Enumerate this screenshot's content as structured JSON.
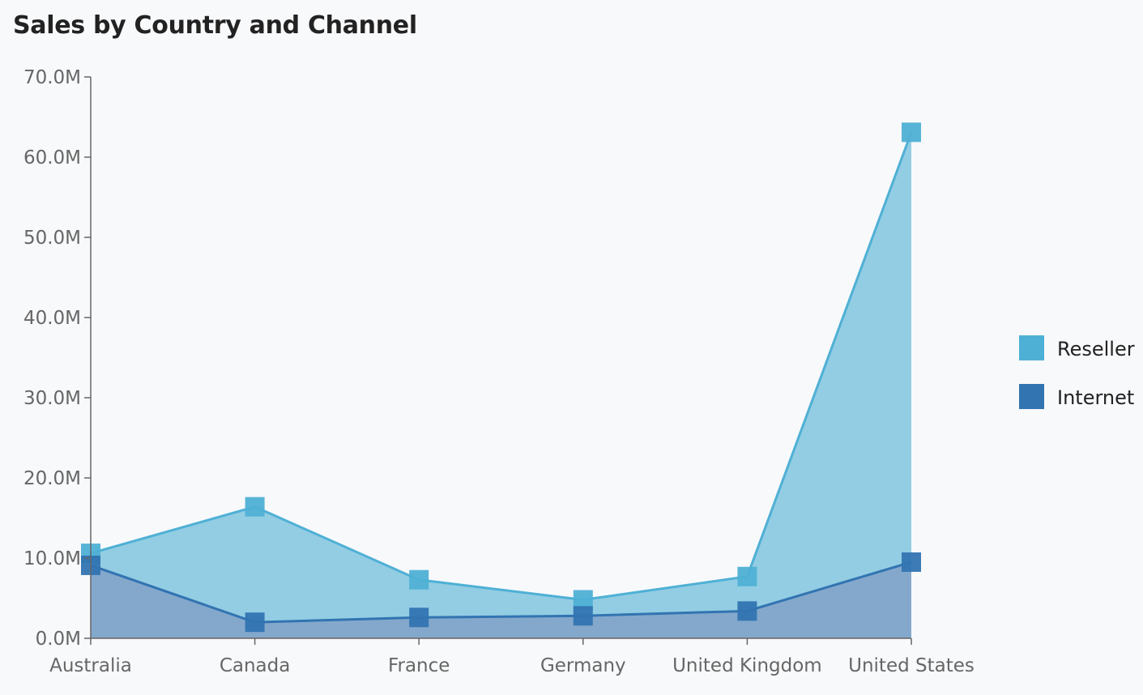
{
  "chart_data": {
    "type": "area",
    "title": "Sales by Country and Channel",
    "xlabel": "",
    "ylabel": "",
    "categories": [
      "Australia",
      "Canada",
      "France",
      "Germany",
      "United Kingdom",
      "United States"
    ],
    "ylim": [
      0,
      70000000
    ],
    "yticks": [
      0,
      10000000,
      20000000,
      30000000,
      40000000,
      50000000,
      60000000,
      70000000
    ],
    "ytick_labels": [
      "0.0M",
      "10.0M",
      "20.0M",
      "30.0M",
      "40.0M",
      "50.0M",
      "60.0M",
      "70.0M"
    ],
    "grid": false,
    "legend_position": "right",
    "series": [
      {
        "name": "Reseller",
        "color": "#4fb0d5",
        "fill": "#93cde3",
        "values": [
          10600000,
          16400000,
          7300000,
          4800000,
          7700000,
          63100000
        ]
      },
      {
        "name": "Internet",
        "color": "#3274b1",
        "fill": "#84a8cc",
        "values": [
          9100000,
          2000000,
          2600000,
          2800000,
          3400000,
          9500000
        ]
      }
    ]
  }
}
